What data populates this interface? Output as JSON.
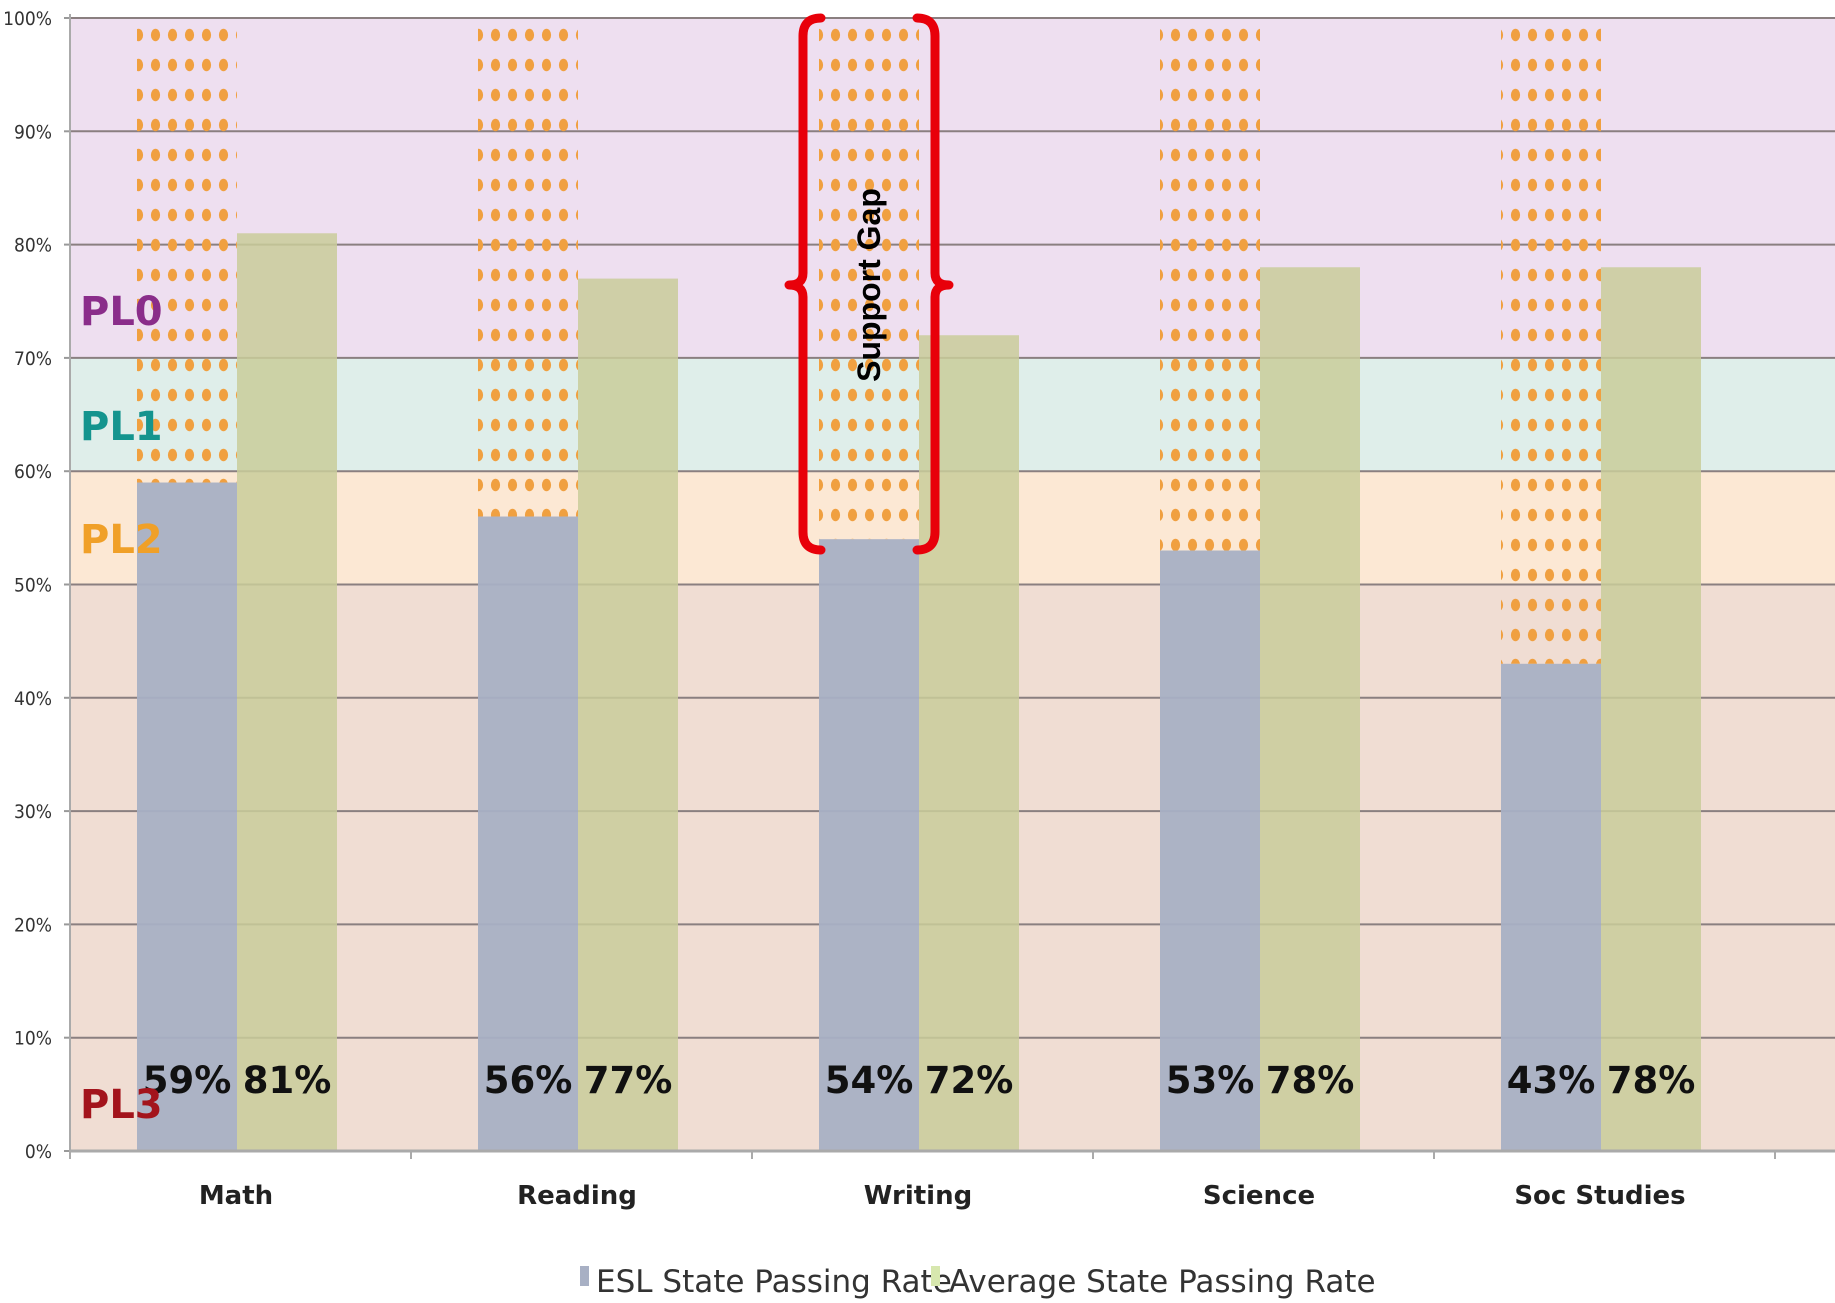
{
  "chart_data": {
    "type": "bar",
    "categories": [
      "Math",
      "Reading",
      "Writing",
      "Science",
      "Soc Studies"
    ],
    "series": [
      {
        "name": "ESL State Passing Rate",
        "values": [
          59,
          56,
          54,
          53,
          43
        ],
        "color": "#a8b0c4"
      },
      {
        "name": "Average State Passing Rate",
        "values": [
          81,
          77,
          72,
          78,
          78
        ],
        "color": "#c9cc9a"
      }
    ],
    "value_labels": [
      [
        "59%",
        "56%",
        "54%",
        "53%",
        "43%"
      ],
      [
        "81%",
        "77%",
        "72%",
        "78%",
        "78%"
      ]
    ],
    "ylim": [
      0,
      100
    ],
    "yticks": [
      "0%",
      "10%",
      "20%",
      "30%",
      "40%",
      "50%",
      "60%",
      "70%",
      "80%",
      "90%",
      "100%"
    ],
    "grid": true,
    "legend_position": "bottom-center",
    "gap_fill_to": 100,
    "gap_color": "#f0a040",
    "bands": [
      {
        "label": "PL0",
        "from": 70,
        "to": 100,
        "fill": "#eedff0",
        "text_color": "#8a2d8a"
      },
      {
        "label": "PL1",
        "from": 60,
        "to": 70,
        "fill": "#dfeeea",
        "text_color": "#14948e"
      },
      {
        "label": "PL2",
        "from": 50,
        "to": 60,
        "fill": "#fce8d4",
        "text_color": "#f0a028"
      },
      {
        "label": "PL3",
        "from": 0,
        "to": 50,
        "fill": "#f0ddd3",
        "text_color": "#a3141c"
      }
    ],
    "annotation": {
      "text": "Support Gap",
      "category_index": 2,
      "color": "#e8000a"
    }
  }
}
